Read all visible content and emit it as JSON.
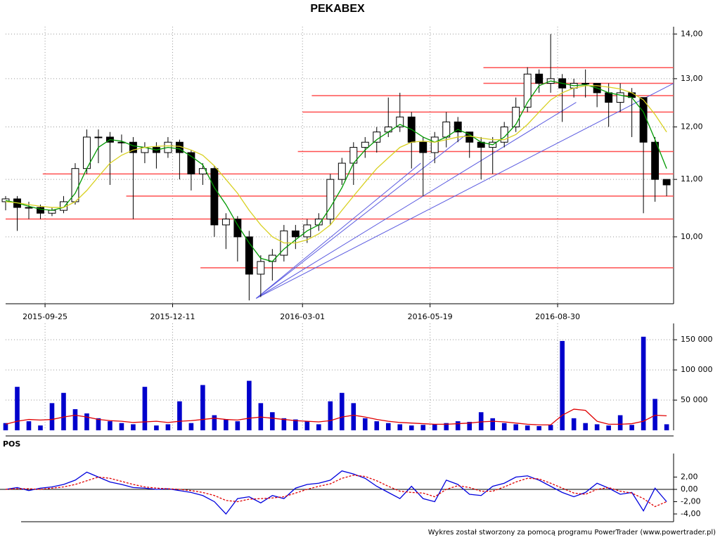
{
  "chart_data": [
    {
      "type": "candlestick",
      "title": "PEKABEX",
      "log_scale": true,
      "grid": true,
      "candle_color": "#000000",
      "xlim": [
        0,
        288
      ],
      "ylim": [
        8.95,
        14.17
      ],
      "xticks": [
        {
          "value": 17,
          "label": "2015-09-25"
        },
        {
          "value": 72,
          "label": "2015-12-11"
        },
        {
          "value": 128,
          "label": "2016-03-01"
        },
        {
          "value": 183,
          "label": "2016-05-19"
        },
        {
          "value": 238,
          "label": "2016-08-30"
        }
      ],
      "yticks": [
        {
          "value": 10,
          "label": "10,00"
        },
        {
          "value": 11,
          "label": "11,00"
        },
        {
          "value": 12,
          "label": "12,00"
        },
        {
          "value": 13,
          "label": "13,00"
        },
        {
          "value": 14,
          "label": "14,00"
        }
      ],
      "x": [
        0,
        5,
        10,
        15,
        20,
        25,
        30,
        35,
        40,
        45,
        50,
        55,
        60,
        65,
        70,
        75,
        80,
        85,
        90,
        95,
        100,
        105,
        110,
        115,
        120,
        125,
        130,
        135,
        140,
        145,
        150,
        155,
        160,
        165,
        170,
        175,
        180,
        185,
        190,
        195,
        200,
        205,
        210,
        215,
        220,
        225,
        230,
        235,
        240,
        245,
        250,
        255,
        260,
        265,
        270,
        275,
        280,
        285
      ],
      "open": [
        10.6,
        10.65,
        10.5,
        10.5,
        10.4,
        10.45,
        10.6,
        11.2,
        11.8,
        11.8,
        11.7,
        11.7,
        11.5,
        11.6,
        11.5,
        11.7,
        11.5,
        11.1,
        11.2,
        10.2,
        10.3,
        10.0,
        9.4,
        9.6,
        9.7,
        10.1,
        10.0,
        10.2,
        10.3,
        11.0,
        11.3,
        11.6,
        11.7,
        11.9,
        12.0,
        12.2,
        11.7,
        11.5,
        11.8,
        12.1,
        11.9,
        11.7,
        11.6,
        11.7,
        12.0,
        12.4,
        13.1,
        12.9,
        13.0,
        12.8,
        12.9,
        12.9,
        12.7,
        12.5,
        12.7,
        12.6,
        11.7,
        11.0
      ],
      "high": [
        10.7,
        10.7,
        10.6,
        10.55,
        10.5,
        10.7,
        11.3,
        11.95,
        11.95,
        11.9,
        11.85,
        11.8,
        11.7,
        11.7,
        11.8,
        11.75,
        11.55,
        11.3,
        11.25,
        10.4,
        10.35,
        10.1,
        9.7,
        9.8,
        10.2,
        10.2,
        10.3,
        10.4,
        11.1,
        11.4,
        11.7,
        11.8,
        12.0,
        12.6,
        12.7,
        12.3,
        11.8,
        11.9,
        12.3,
        12.2,
        11.9,
        11.8,
        11.8,
        12.1,
        12.6,
        13.25,
        13.2,
        14.0,
        13.1,
        13.0,
        13.2,
        12.9,
        12.9,
        12.9,
        12.8,
        12.6,
        11.8,
        11.0
      ],
      "low": [
        10.45,
        10.1,
        10.3,
        10.3,
        10.35,
        10.4,
        10.55,
        11.1,
        11.3,
        10.9,
        11.5,
        10.3,
        11.3,
        11.2,
        11.4,
        11.0,
        10.8,
        10.9,
        10.0,
        9.8,
        9.6,
        9.0,
        9.05,
        9.3,
        9.6,
        9.8,
        9.9,
        10.1,
        10.2,
        10.9,
        10.9,
        11.4,
        11.5,
        11.8,
        11.9,
        11.2,
        10.7,
        11.3,
        11.6,
        11.7,
        11.4,
        11.0,
        11.1,
        11.6,
        11.9,
        12.3,
        12.7,
        12.7,
        12.1,
        12.6,
        12.6,
        12.4,
        12.0,
        12.3,
        11.8,
        10.4,
        10.6,
        10.7
      ],
      "close": [
        10.65,
        10.5,
        10.5,
        10.4,
        10.45,
        10.6,
        11.2,
        11.8,
        11.8,
        11.7,
        11.7,
        11.5,
        11.6,
        11.5,
        11.7,
        11.5,
        11.1,
        11.2,
        10.2,
        10.3,
        10.0,
        9.4,
        9.6,
        9.7,
        10.1,
        10.0,
        10.2,
        10.3,
        11.0,
        11.3,
        11.6,
        11.7,
        11.9,
        12.0,
        12.2,
        11.7,
        11.5,
        11.8,
        12.1,
        11.9,
        11.7,
        11.6,
        11.7,
        12.0,
        12.4,
        13.1,
        12.9,
        13.0,
        12.8,
        12.9,
        12.9,
        12.7,
        12.5,
        12.7,
        12.6,
        11.7,
        11.0,
        10.9
      ],
      "series": [
        {
          "color": "#009900",
          "values": [
            10.62,
            10.58,
            10.52,
            10.47,
            10.45,
            10.5,
            10.75,
            11.2,
            11.6,
            11.75,
            11.72,
            11.63,
            11.6,
            11.55,
            11.6,
            11.57,
            11.43,
            11.27,
            10.85,
            10.55,
            10.2,
            9.9,
            9.65,
            9.6,
            9.8,
            9.95,
            10.1,
            10.2,
            10.5,
            10.85,
            11.3,
            11.55,
            11.75,
            11.9,
            12.05,
            11.95,
            11.8,
            11.7,
            11.8,
            11.95,
            11.85,
            11.7,
            11.65,
            11.8,
            12.05,
            12.5,
            12.85,
            12.95,
            12.9,
            12.85,
            12.87,
            12.8,
            12.7,
            12.65,
            12.6,
            12.3,
            11.75,
            11.2
          ]
        },
        {
          "color": "#d8d020",
          "values": [
            10.6,
            10.58,
            10.55,
            10.52,
            10.5,
            10.5,
            10.6,
            10.8,
            11.05,
            11.3,
            11.45,
            11.55,
            11.6,
            11.62,
            11.63,
            11.62,
            11.55,
            11.45,
            11.25,
            11.0,
            10.75,
            10.45,
            10.2,
            10.0,
            9.9,
            9.9,
            9.95,
            10.05,
            10.2,
            10.45,
            10.7,
            10.95,
            11.2,
            11.4,
            11.6,
            11.7,
            11.72,
            11.7,
            11.75,
            11.8,
            11.82,
            11.78,
            11.75,
            11.75,
            11.85,
            12.05,
            12.3,
            12.55,
            12.7,
            12.8,
            12.85,
            12.85,
            12.82,
            12.78,
            12.7,
            12.55,
            12.25,
            11.9
          ]
        }
      ],
      "horizontal_line_color": "#ff5050",
      "horizontal_lines": [
        {
          "level": 10.3,
          "start": 0
        },
        {
          "level": 9.5,
          "start": 84
        },
        {
          "level": 10.7,
          "start": 52
        },
        {
          "level": 11.1,
          "start": 16
        },
        {
          "level": 11.52,
          "start": 126
        },
        {
          "level": 12.3,
          "start": 128
        },
        {
          "level": 12.64,
          "start": 132
        },
        {
          "level": 12.9,
          "start": 206
        },
        {
          "level": 13.24,
          "start": 206
        }
      ],
      "trend_line_color": "#5a5ae0",
      "trend_lines": [
        {
          "x": [
            108,
            288
          ],
          "y": [
            9.03,
            12.9
          ]
        },
        {
          "x": [
            108,
            246
          ],
          "y": [
            9.03,
            12.5
          ]
        },
        {
          "x": [
            108,
            200
          ],
          "y": [
            9.03,
            11.9
          ]
        },
        {
          "x": [
            108,
            179
          ],
          "y": [
            9.03,
            11.3
          ]
        }
      ]
    },
    {
      "type": "volume",
      "grid": true,
      "xlim": [
        0,
        288
      ],
      "ylim": [
        0,
        177000
      ],
      "yticks": [
        {
          "value": 50000,
          "label": "50 000"
        },
        {
          "value": 100000,
          "label": "100 000"
        },
        {
          "value": 150000,
          "label": "150 000"
        }
      ],
      "x": [
        0,
        5,
        10,
        15,
        20,
        25,
        30,
        35,
        40,
        45,
        50,
        55,
        60,
        65,
        70,
        75,
        80,
        85,
        90,
        95,
        100,
        105,
        110,
        115,
        120,
        125,
        130,
        135,
        140,
        145,
        150,
        155,
        160,
        165,
        170,
        175,
        180,
        185,
        190,
        195,
        200,
        205,
        210,
        215,
        220,
        225,
        230,
        235,
        240,
        245,
        250,
        255,
        260,
        265,
        270,
        275,
        280,
        285
      ],
      "series": [
        {
          "type": "bar",
          "color": "#0000cc",
          "values": [
            12000,
            72000,
            15000,
            8000,
            45000,
            62000,
            35000,
            28000,
            20000,
            15000,
            12000,
            10000,
            72000,
            8000,
            10000,
            48000,
            12000,
            75000,
            25000,
            18000,
            15000,
            82000,
            45000,
            30000,
            20000,
            18000,
            15000,
            10000,
            48000,
            62000,
            45000,
            20000,
            15000,
            12000,
            10000,
            8000,
            9000,
            10000,
            12000,
            15000,
            14000,
            30000,
            20000,
            12000,
            10000,
            8000,
            7000,
            9000,
            148000,
            20000,
            12000,
            10000,
            8000,
            25000,
            9000,
            155000,
            52000,
            10000
          ]
        },
        {
          "type": "line",
          "color": "#e00000",
          "values": [
            10000,
            15000,
            18000,
            17000,
            18000,
            22000,
            25000,
            22000,
            18000,
            16000,
            15000,
            13000,
            14000,
            15000,
            13000,
            15000,
            16000,
            18000,
            20000,
            18000,
            17000,
            20000,
            22000,
            20000,
            18000,
            16000,
            15000,
            14000,
            16000,
            22000,
            25000,
            22000,
            18000,
            15000,
            13000,
            12000,
            11000,
            10000,
            10000,
            11000,
            12000,
            14000,
            15000,
            14000,
            12000,
            10000,
            9000,
            9000,
            25000,
            35000,
            33000,
            15000,
            10000,
            10000,
            11000,
            15000,
            25000,
            24000
          ]
        }
      ]
    },
    {
      "type": "line",
      "title": "POS",
      "grid": false,
      "zero_line": true,
      "xlim": [
        0,
        288
      ],
      "ylim": [
        -5.26,
        5.83
      ],
      "yticks": [
        {
          "value": -4,
          "label": "-4,00"
        },
        {
          "value": -2,
          "label": "-2,00"
        },
        {
          "value": 0,
          "label": "0,00"
        },
        {
          "value": 2,
          "label": "2,00"
        }
      ],
      "x": [
        0,
        5,
        10,
        15,
        20,
        25,
        30,
        35,
        40,
        45,
        50,
        55,
        60,
        65,
        70,
        75,
        80,
        85,
        90,
        95,
        100,
        105,
        110,
        115,
        120,
        125,
        130,
        135,
        140,
        145,
        150,
        155,
        160,
        165,
        170,
        175,
        180,
        185,
        190,
        195,
        200,
        205,
        210,
        215,
        220,
        225,
        230,
        235,
        240,
        245,
        250,
        255,
        260,
        265,
        270,
        275,
        280,
        285
      ],
      "series": [
        {
          "color": "#0000dd",
          "dashed": false,
          "values": [
            0,
            0.3,
            -0.2,
            0.2,
            0.4,
            0.8,
            1.5,
            2.8,
            2.0,
            1.2,
            0.8,
            0.3,
            0.2,
            0.0,
            0.1,
            -0.2,
            -0.5,
            -1.0,
            -2.0,
            -4.0,
            -1.5,
            -1.2,
            -2.2,
            -1.0,
            -1.5,
            0.2,
            0.8,
            1.0,
            1.5,
            3.0,
            2.5,
            1.8,
            0.5,
            -0.5,
            -1.5,
            0.5,
            -1.5,
            -2.0,
            1.5,
            0.8,
            -0.8,
            -1.0,
            0.5,
            1.0,
            2.0,
            2.2,
            1.5,
            0.5,
            -0.5,
            -1.2,
            -0.5,
            1.0,
            0.2,
            -0.8,
            -0.5,
            -3.5,
            0.2,
            -2.0
          ]
        },
        {
          "color": "#e00000",
          "dashed": true,
          "values": [
            0,
            0.1,
            0.1,
            0.0,
            0.2,
            0.4,
            0.8,
            1.4,
            2.0,
            1.8,
            1.3,
            0.8,
            0.4,
            0.2,
            0.1,
            0.0,
            -0.2,
            -0.5,
            -1.0,
            -1.8,
            -2.0,
            -1.6,
            -1.5,
            -1.4,
            -1.2,
            -0.6,
            0.0,
            0.5,
            0.9,
            1.8,
            2.3,
            2.1,
            1.4,
            0.5,
            -0.3,
            -0.5,
            -0.6,
            -1.2,
            0.0,
            0.6,
            0.3,
            -0.3,
            -0.3,
            0.4,
            1.2,
            1.8,
            1.7,
            1.0,
            0.2,
            -0.6,
            -0.8,
            0.0,
            0.3,
            -0.3,
            -0.6,
            -1.5,
            -2.8,
            -2.0
          ]
        }
      ]
    }
  ],
  "footer": "Wykres został stworzony za pomocą programu PowerTrader (www.powertrader.pl)"
}
